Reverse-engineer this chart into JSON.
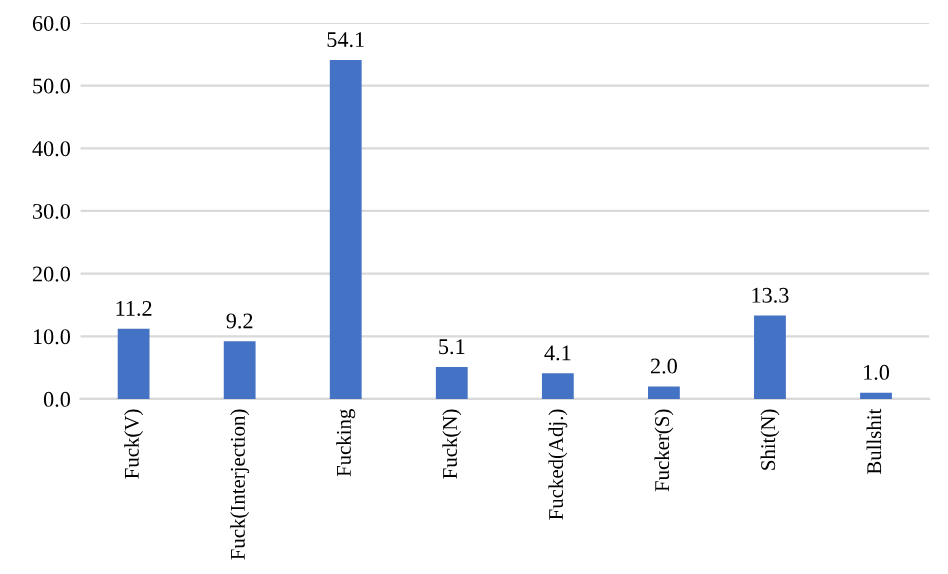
{
  "chart_data": {
    "type": "bar",
    "categories": [
      "Fuck(V)",
      "Fuck(Interjection)",
      "Fucking",
      "Fuck(N)",
      "Fucked(Adj.)",
      "Fucker(S)",
      "Shit(N)",
      "Bullshit"
    ],
    "values": [
      11.2,
      9.2,
      54.1,
      5.1,
      4.1,
      2.0,
      13.3,
      1.0
    ],
    "value_labels": [
      "11.2",
      "9.2",
      "54.1",
      "5.1",
      "4.1",
      "2.0",
      "13.3",
      "1.0"
    ],
    "color": "#4472c4",
    "ylim": [
      0,
      60
    ],
    "yticks": [
      {
        "value": 0,
        "label": "0.0"
      },
      {
        "value": 10,
        "label": "10.0"
      },
      {
        "value": 20,
        "label": "20.0"
      },
      {
        "value": 30,
        "label": "30.0"
      },
      {
        "value": 40,
        "label": "40.0"
      },
      {
        "value": 50,
        "label": "50.0"
      },
      {
        "value": 60,
        "label": "60.0"
      }
    ],
    "grid": "y"
  }
}
